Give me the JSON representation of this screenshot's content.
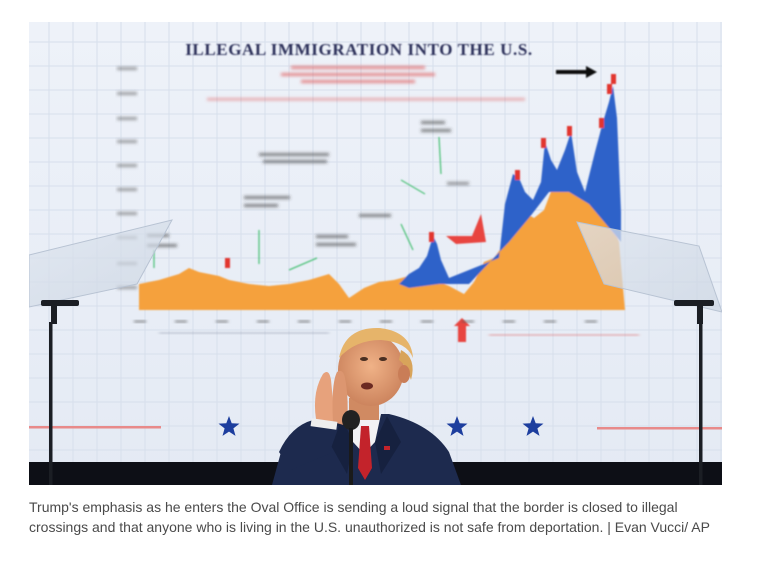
{
  "photo": {
    "screen_title": "ILLEGAL IMMIGRATION INTO THE U.S.",
    "description_icon": "photo-of-speaker-in-front-of-chart-screen",
    "colors": {
      "screen_bg": "#e8edf6",
      "orange": "#f5a13c",
      "blue": "#2f62c9",
      "red": "#e2352f",
      "navy_title": "#2a2f58",
      "star": "#1d3e9e",
      "stage": "#0d0f16",
      "suit": "#1d2a4e"
    }
  },
  "caption": {
    "text": "Trump's emphasis as he enters the Oval Office is sending a loud signal that the border is closed to illegal crossings and that anyone who is living in the U.S. unauthorized is not safe from deportation. | Evan Vucci/ AP"
  }
}
